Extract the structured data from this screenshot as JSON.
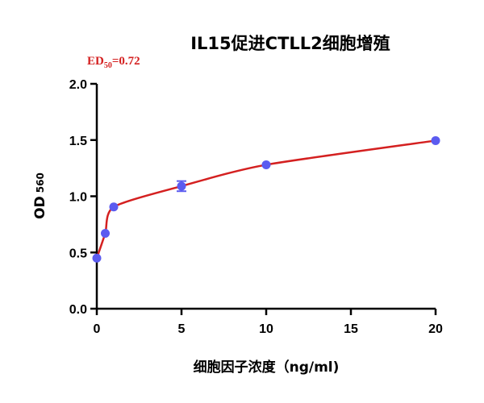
{
  "chart_data": {
    "type": "line",
    "title": "IL15促进CTLL2细胞增殖",
    "xlabel": "细胞因子浓度（ng/ml)",
    "ylabel_main": "OD",
    "ylabel_sub": "560",
    "xlim": [
      0,
      20
    ],
    "ylim": [
      0,
      2.0
    ],
    "x_ticks": [
      "0",
      "5",
      "10",
      "15",
      "20"
    ],
    "y_ticks": [
      "0.0",
      "0.5",
      "1.0",
      "1.5",
      "2.0"
    ],
    "grid": false,
    "legend": "none",
    "annotation": {
      "prefix": "ED",
      "subscript": "50",
      "value": "=0.72",
      "color": "#d42020"
    },
    "series": [
      {
        "color_line": "#d42020",
        "color_marker": "#5b5bf0",
        "x": [
          0,
          0.5,
          1,
          5,
          10,
          20
        ],
        "y": [
          0.45,
          0.67,
          0.905,
          1.09,
          1.28,
          1.495
        ],
        "error": [
          0,
          0,
          0,
          0.045,
          0,
          0
        ]
      }
    ]
  }
}
